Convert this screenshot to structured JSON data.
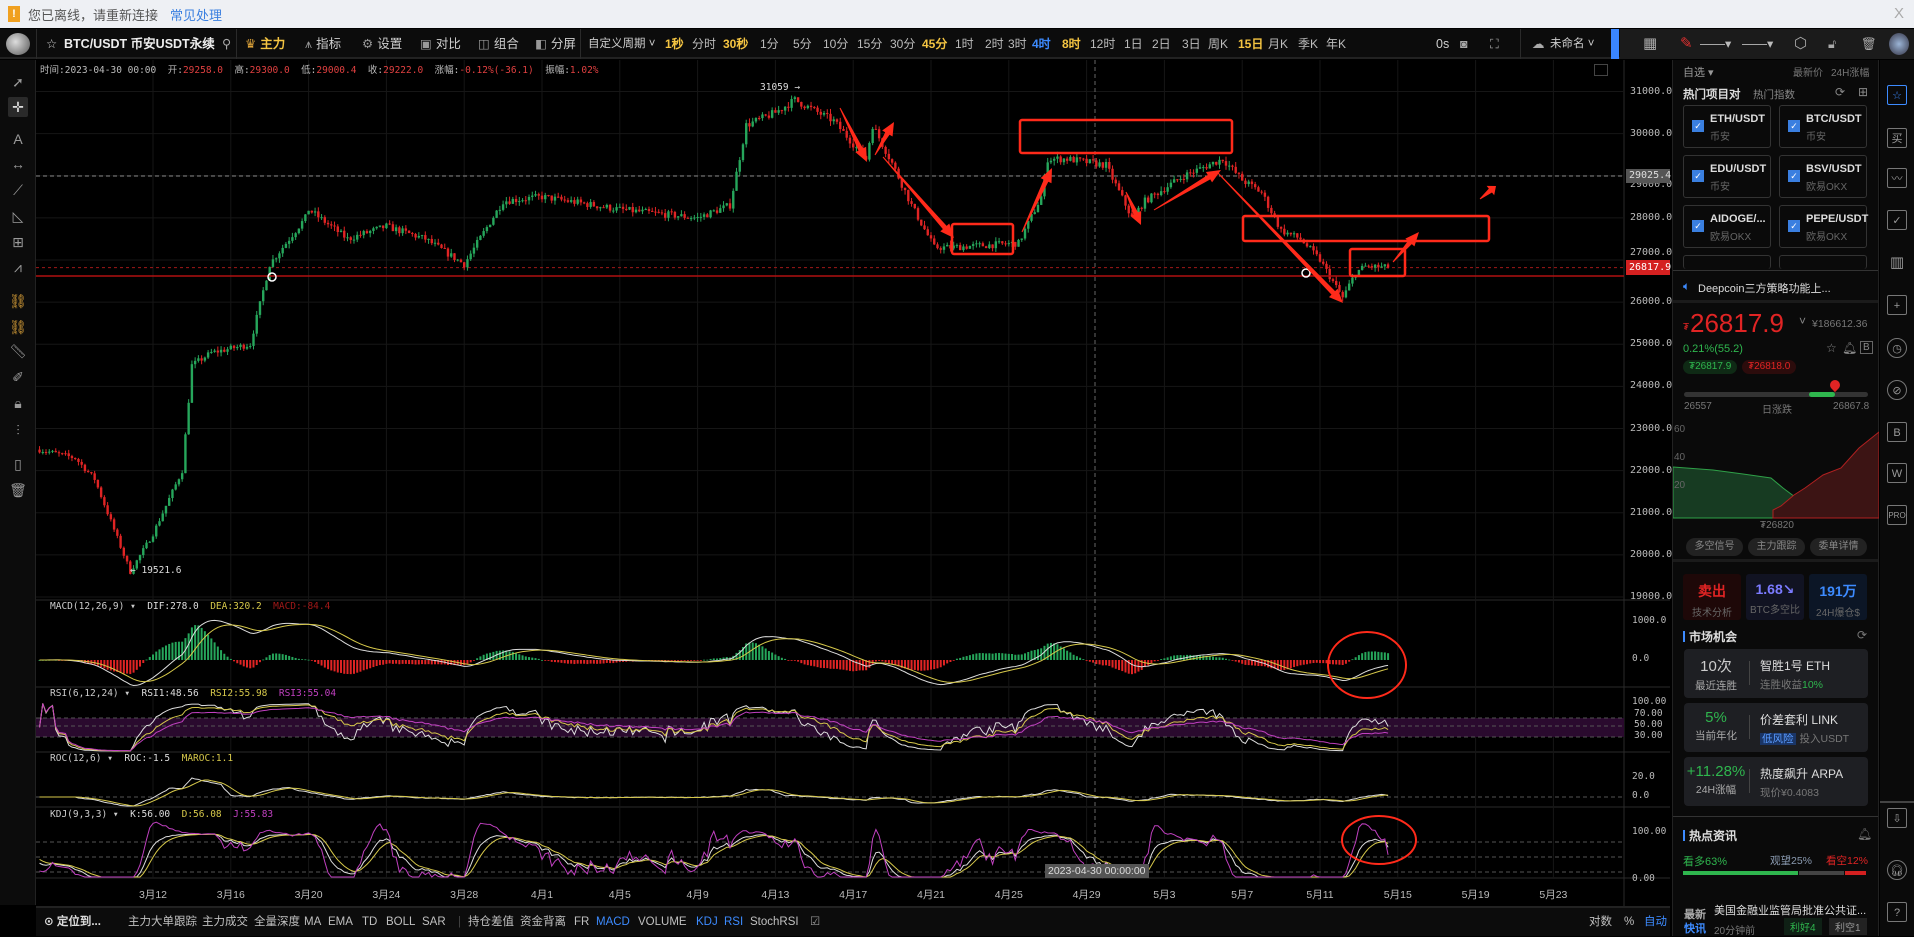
{
  "notice": {
    "message": "您已离线，请重新连接",
    "link": "常见处理",
    "close": "X"
  },
  "toolbar": {
    "symbol": "BTC/USDT 币安USDT永续",
    "items": [
      {
        "icon": "crown-icon",
        "label": "主力"
      },
      {
        "icon": "indicator-icon",
        "label": "指标"
      },
      {
        "icon": "gear-icon",
        "label": "设置"
      },
      {
        "icon": "compare-icon",
        "label": "对比"
      },
      {
        "icon": "combine-icon",
        "label": "组合"
      },
      {
        "icon": "split-screen-icon",
        "label": "分屏"
      }
    ],
    "custom_period": "自定义周期",
    "periods": [
      {
        "label": "1秒",
        "style": "gold"
      },
      {
        "label": "分时",
        "style": ""
      },
      {
        "label": "30秒",
        "style": "gold"
      },
      {
        "label": "1分",
        "style": ""
      },
      {
        "label": "5分",
        "style": ""
      },
      {
        "label": "10分",
        "style": ""
      },
      {
        "label": "15分",
        "style": ""
      },
      {
        "label": "30分",
        "style": ""
      },
      {
        "label": "45分",
        "style": "gold"
      },
      {
        "label": "1时",
        "style": ""
      },
      {
        "label": "2时",
        "style": ""
      },
      {
        "label": "3时",
        "style": ""
      },
      {
        "label": "4时",
        "style": "blue"
      },
      {
        "label": "8时",
        "style": "gold"
      },
      {
        "label": "12时",
        "style": ""
      },
      {
        "label": "1日",
        "style": ""
      },
      {
        "label": "2日",
        "style": ""
      },
      {
        "label": "3日",
        "style": ""
      },
      {
        "label": "周K",
        "style": ""
      },
      {
        "label": "15日",
        "style": "gold"
      },
      {
        "label": "月K",
        "style": ""
      },
      {
        "label": "季K",
        "style": ""
      },
      {
        "label": "年K",
        "style": ""
      }
    ],
    "timer": "0s",
    "layout_name": "未命名"
  },
  "ohlc": {
    "time_label": "时间:",
    "time": "2023-04-30 00:00",
    "open_label": "开:",
    "open": "29258.0",
    "high_label": "高:",
    "high": "29300.0",
    "low_label": "低:",
    "low": "29000.4",
    "close_label": "收:",
    "close": "29222.0",
    "change_label": "涨幅:",
    "change": "-0.12%(-36.1)",
    "amp_label": "振幅:",
    "amp": "1.02%"
  },
  "chart": {
    "colors": {
      "up": "#26a65b",
      "down": "#e02424",
      "drawing": "#ff2a1a"
    },
    "price_ticks": [
      "31000.0",
      "30000.0",
      "29000.0",
      "28000.0",
      "27000.0",
      "26000.0",
      "25000.0",
      "24000.0",
      "23000.0",
      "22000.0",
      "21000.0",
      "20000.0",
      "19000.0"
    ],
    "last_price": "26817.9",
    "crosshair_price": "29025.4",
    "high_marker": "31059 →",
    "low_marker": "← 19521.6",
    "crosshair_date": "2023-04-30 00:00:00",
    "date_labels": [
      "3月12",
      "3月16",
      "3月20",
      "3月24",
      "3月28",
      "4月1",
      "4月5",
      "4月9",
      "4月13",
      "4月17",
      "4月21",
      "4月25",
      "4月29",
      "5月3",
      "5月7",
      "5月11",
      "5月15",
      "5月19",
      "5月23"
    ],
    "price_path": [
      [
        "2023-03-06T04:00",
        22500
      ],
      [
        "2023-03-08T00:00",
        22300
      ],
      [
        "2023-03-09T00:00",
        21800
      ],
      [
        "2023-03-10T20:00",
        19600
      ],
      [
        "2023-03-12T00:00",
        20500
      ],
      [
        "2023-03-13T12:00",
        22000
      ],
      [
        "2023-03-14T00:00",
        24500
      ],
      [
        "2023-03-15T00:00",
        24800
      ],
      [
        "2023-03-17T00:00",
        25000
      ],
      [
        "2023-03-18T00:00",
        26900
      ],
      [
        "2023-03-19T20:00",
        28000
      ],
      [
        "2023-03-20T00:00",
        28200
      ],
      [
        "2023-03-22T00:00",
        27500
      ],
      [
        "2023-03-24T00:00",
        27800
      ],
      [
        "2023-03-26T00:00",
        27500
      ],
      [
        "2023-03-28T00:00",
        26900
      ],
      [
        "2023-03-30T00:00",
        28400
      ],
      [
        "2023-04-01T00:00",
        28500
      ],
      [
        "2023-04-05T00:00",
        28200
      ],
      [
        "2023-04-09T00:00",
        28000
      ],
      [
        "2023-04-10T16:00",
        28300
      ],
      [
        "2023-04-11T12:00",
        30200
      ],
      [
        "2023-04-13T00:00",
        30500
      ],
      [
        "2023-04-14T00:00",
        30800
      ],
      [
        "2023-04-16T00:00",
        30300
      ],
      [
        "2023-04-17T16:00",
        29400
      ],
      [
        "2023-04-18T00:00",
        30200
      ],
      [
        "2023-04-19T00:00",
        29300
      ],
      [
        "2023-04-20T00:00",
        28300
      ],
      [
        "2023-04-21T04:00",
        27300
      ],
      [
        "2023-04-22T00:00",
        27300
      ],
      [
        "2023-04-25T12:00",
        27400
      ],
      [
        "2023-04-26T16:00",
        28500
      ],
      [
        "2023-04-27T00:00",
        29400
      ],
      [
        "2023-04-28T00:00",
        29400
      ],
      [
        "2023-04-30T00:00",
        29250
      ],
      [
        "2023-05-01T08:00",
        28000
      ],
      [
        "2023-05-02T00:00",
        28400
      ],
      [
        "2023-05-04T00:00",
        29000
      ],
      [
        "2023-05-06T00:00",
        29400
      ],
      [
        "2023-05-07T00:00",
        28900
      ],
      [
        "2023-05-08T00:00",
        28600
      ],
      [
        "2023-05-09T00:00",
        27700
      ],
      [
        "2023-05-10T00:00",
        27500
      ],
      [
        "2023-05-11T00:00",
        27000
      ],
      [
        "2023-05-12T04:00",
        26100
      ],
      [
        "2023-05-12T20:00",
        26700
      ],
      [
        "2023-05-13T08:00",
        26850
      ],
      [
        "2023-05-14T12:00",
        26818
      ]
    ],
    "macd": {
      "label": "MACD(12,26,9)",
      "dif": "DIF:278.0",
      "dea": "DEA:320.2",
      "macd": "MACD:-84.4",
      "ticks": [
        "1000.0",
        "0.0"
      ]
    },
    "rsi": {
      "label": "RSI(6,12,24)",
      "rsi1": "RSI1:48.56",
      "rsi2": "RSI2:55.98",
      "rsi3": "RSI3:55.04",
      "ticks": [
        "100.00",
        "70.00",
        "50.00",
        "30.00"
      ]
    },
    "roc": {
      "label": "ROC(12,6)",
      "roc": "ROC:-1.5",
      "maroc": "MAROC:1.1",
      "ticks": [
        "20.0",
        "0.0"
      ]
    },
    "kdj": {
      "label": "KDJ(9,3,3)",
      "k": "K:56.00",
      "d": "D:56.08",
      "j": "J:55.83",
      "ticks": [
        "100.00",
        "0.00"
      ]
    }
  },
  "bottombar": {
    "locate": "定位到...",
    "items": [
      {
        "label": "主力大单跟踪",
        "active": false
      },
      {
        "label": "主力成交",
        "active": false
      },
      {
        "label": "全量深度",
        "active": false
      },
      {
        "label": "MA",
        "active": false
      },
      {
        "label": "EMA",
        "active": false
      },
      {
        "label": "TD",
        "active": false
      },
      {
        "label": "BOLL",
        "active": false
      },
      {
        "label": "SAR",
        "active": false
      }
    ],
    "items2": [
      {
        "label": "持仓差值",
        "active": false
      },
      {
        "label": "资金背离",
        "active": false
      },
      {
        "label": "FR",
        "active": false
      },
      {
        "label": "MACD",
        "active": true
      },
      {
        "label": "VOLUME",
        "active": false
      },
      {
        "label": "KDJ",
        "active": true
      },
      {
        "label": "RSI",
        "active": true
      },
      {
        "label": "StochRSI",
        "active": false
      }
    ],
    "log": "对数",
    "percent": "%",
    "auto": "自动"
  },
  "panel": {
    "watchlist": "自选 ▾",
    "col_price": "最新价",
    "col_change": "24H涨幅",
    "tab_hot_pairs": "热门项目对",
    "tab_hot_index": "热门指数",
    "pairs": [
      {
        "name": "ETH/USDT",
        "exchange": "币安"
      },
      {
        "name": "BTC/USDT",
        "exchange": "币安"
      },
      {
        "name": "EDU/USDT",
        "exchange": "币安"
      },
      {
        "name": "BSV/USDT",
        "exchange": "欧易OKX"
      },
      {
        "name": "AIDOGE/...",
        "exchange": "欧易OKX"
      },
      {
        "name": "PEPE/USDT",
        "exchange": "欧易OKX"
      }
    ],
    "news_ticker": "Deepcoin三方策略功能上...",
    "price": "26817.9",
    "price_cny": "¥186612.36",
    "change": "0.21%(55.2)",
    "bid": "₮26817.9",
    "ask": "₮26818.0",
    "range_low": "26557",
    "range_label": "日涨跌",
    "range_high": "26867.8",
    "range_position": 0.82,
    "depth_ticks": [
      "60",
      "40",
      "20"
    ],
    "depth_price": "₮26820",
    "buttons": [
      "多空信号",
      "主力跟踪",
      "委单详情"
    ],
    "stats": [
      {
        "value": "卖出",
        "label": "技术分析",
        "color": "#e02424"
      },
      {
        "value": "1.68↘",
        "label": "BTC多空比",
        "color": "#7b7bff"
      },
      {
        "value": "191万",
        "label": "24H爆仓$",
        "color": "#3d8bff"
      }
    ],
    "market_title": "市场机会",
    "opportunities": [
      {
        "big": "10次",
        "small": "最近连胜",
        "title": "智胜1号 ETH",
        "sub": "连胜收益",
        "sub_value": "10%"
      },
      {
        "big": "5%",
        "small": "当前年化",
        "title": "价差套利 LINK",
        "sub": "低风险",
        "sub_value": "投入USDT"
      },
      {
        "big": "+11.28%",
        "small": "24H涨幅",
        "title": "热度飙升 ARPA",
        "sub": "现价¥0.4083",
        "sub_value": ""
      }
    ],
    "news_title": "热点资讯",
    "bull": "看多63%",
    "neutral": "观望25%",
    "bear": "看空12%",
    "sentiment": {
      "bull": 63,
      "neutral": 25,
      "bear": 12
    },
    "news_tag1": "最新",
    "news_tag2": "快讯",
    "headline": "美国金融业监管局批准公共证...",
    "news_time": "20分钟前",
    "good": "利好4",
    "bad": "利空1"
  }
}
